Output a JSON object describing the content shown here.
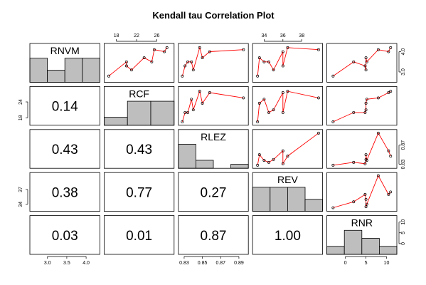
{
  "chart_data": {
    "type": "scatter-matrix",
    "title": "Kendall tau Correlation Plot",
    "variables": [
      "RNVM",
      "RCF",
      "RLEZ",
      "REV",
      "RNR"
    ],
    "colors": {
      "line": "#ff0000",
      "bar": "#bebebe",
      "point": "#000000"
    },
    "observations": {
      "RNVM": [
        2.8,
        3.5,
        3.1,
        4.1,
        4.0,
        3.7,
        3.3,
        3.5,
        4.2
      ],
      "RCF": [
        16.5,
        20.0,
        21.0,
        25.5,
        27.5,
        23.5,
        20.0,
        25.0,
        28.0
      ],
      "RLEZ": [
        0.828,
        0.834,
        0.84,
        0.895,
        0.858,
        0.85,
        0.831,
        0.838,
        0.847
      ],
      "REV": [
        33.3,
        34.5,
        35.0,
        39.8,
        36.0,
        33.5,
        36.0,
        34.0,
        36.5
      ],
      "RNR": [
        -3.0,
        2.0,
        5.0,
        8.0,
        10.5,
        5.0,
        4.8,
        5.2,
        11.0
      ]
    },
    "correlations": [
      {
        "row": "RCF",
        "col": "RNVM",
        "label": "0.14"
      },
      {
        "row": "RLEZ",
        "col": "RNVM",
        "label": "0.43"
      },
      {
        "row": "RLEZ",
        "col": "RCF",
        "label": "0.43"
      },
      {
        "row": "REV",
        "col": "RNVM",
        "label": "0.38"
      },
      {
        "row": "REV",
        "col": "RCF",
        "label": "0.77"
      },
      {
        "row": "REV",
        "col": "RLEZ",
        "label": "0.27"
      },
      {
        "row": "RNR",
        "col": "RNVM",
        "label": "0.03"
      },
      {
        "row": "RNR",
        "col": "RCF",
        "label": "0.01"
      },
      {
        "row": "RNR",
        "col": "RLEZ",
        "label": "0.87"
      },
      {
        "row": "RNR",
        "col": "REV",
        "label": "1.00"
      }
    ],
    "histograms": {
      "RNVM": {
        "breaks": [
          2.5,
          3.0,
          3.5,
          4.0,
          4.5
        ],
        "counts": [
          2,
          1,
          2,
          2
        ]
      },
      "RCF": {
        "breaks": [
          15,
          20,
          25,
          30
        ],
        "counts": [
          1,
          3,
          3
        ]
      },
      "RLEZ": {
        "breaks": [
          0.82,
          0.84,
          0.86,
          0.88,
          0.9
        ],
        "counts": [
          3,
          1,
          0,
          0.5
        ]
      },
      "REV": {
        "breaks": [
          33,
          35,
          37,
          39,
          41
        ],
        "counts": [
          3,
          3,
          3,
          1.5
        ]
      },
      "RNR": {
        "breaks": [
          -5,
          0,
          5,
          10,
          15
        ],
        "counts": [
          2,
          6,
          4,
          2
        ]
      }
    },
    "axes": {
      "RNVM": {
        "range": [
          2.6,
          4.3
        ],
        "ticks": [
          "3.0",
          "3.5",
          "4.0"
        ],
        "tick_values": [
          3.0,
          3.5,
          4.0
        ]
      },
      "RCF": {
        "range": [
          16,
          29
        ],
        "ticks": [
          "18",
          "22",
          "26"
        ],
        "tick_values": [
          18,
          22,
          26
        ],
        "left_ticks": [
          "18",
          "24"
        ],
        "left_tick_values": [
          18,
          24
        ]
      },
      "RLEZ": {
        "range": [
          0.826,
          0.898
        ],
        "ticks": [
          "0.83",
          "0.85",
          "0.87",
          "0.89"
        ],
        "tick_values": [
          0.83,
          0.85,
          0.87,
          0.89
        ],
        "right_ticks": [
          "0.83",
          "0.87"
        ],
        "right_tick_values": [
          0.83,
          0.87
        ]
      },
      "REV": {
        "range": [
          33.0,
          40.0
        ],
        "ticks": [
          "34",
          "36",
          "38"
        ],
        "tick_values": [
          34,
          36,
          38
        ],
        "left_ticks": [
          "34",
          "37"
        ],
        "left_tick_values": [
          34,
          37
        ]
      },
      "RNR": {
        "range": [
          -4,
          12
        ],
        "ticks": [
          "0",
          "5",
          "10"
        ],
        "tick_values": [
          0,
          5,
          10
        ],
        "right_ticks": [
          "0",
          "5",
          "10"
        ],
        "right_tick_values": [
          0,
          5,
          10
        ]
      }
    },
    "extra_axes": {
      "RNVM_right": {
        "ticks": [
          "3.0",
          "4.0"
        ],
        "tick_values": [
          3.0,
          4.0
        ]
      }
    }
  }
}
